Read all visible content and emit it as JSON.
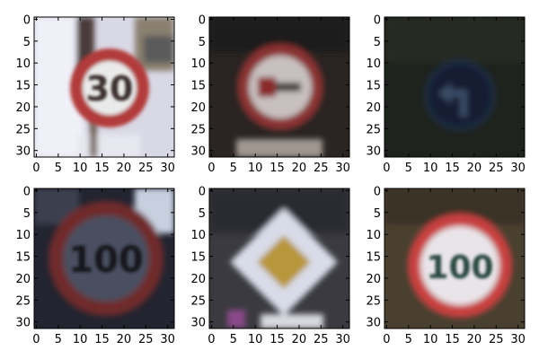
{
  "figure": {
    "panels": [
      {
        "id": "p1",
        "content": "speed-limit-30-sign"
      },
      {
        "id": "p2",
        "content": "no-overtaking-sign"
      },
      {
        "id": "p3",
        "content": "turn-left-ahead-sign"
      },
      {
        "id": "p4",
        "content": "speed-limit-100-sign"
      },
      {
        "id": "p5",
        "content": "priority-road-sign"
      },
      {
        "id": "p6",
        "content": "speed-limit-100-sign"
      }
    ],
    "x_ticks": [
      "0",
      "5",
      "10",
      "15",
      "20",
      "25",
      "30"
    ],
    "y_ticks": [
      "0",
      "5",
      "10",
      "15",
      "20",
      "25",
      "30"
    ],
    "sign_text": {
      "p1": "30",
      "p4": "100",
      "p6": "100"
    }
  }
}
